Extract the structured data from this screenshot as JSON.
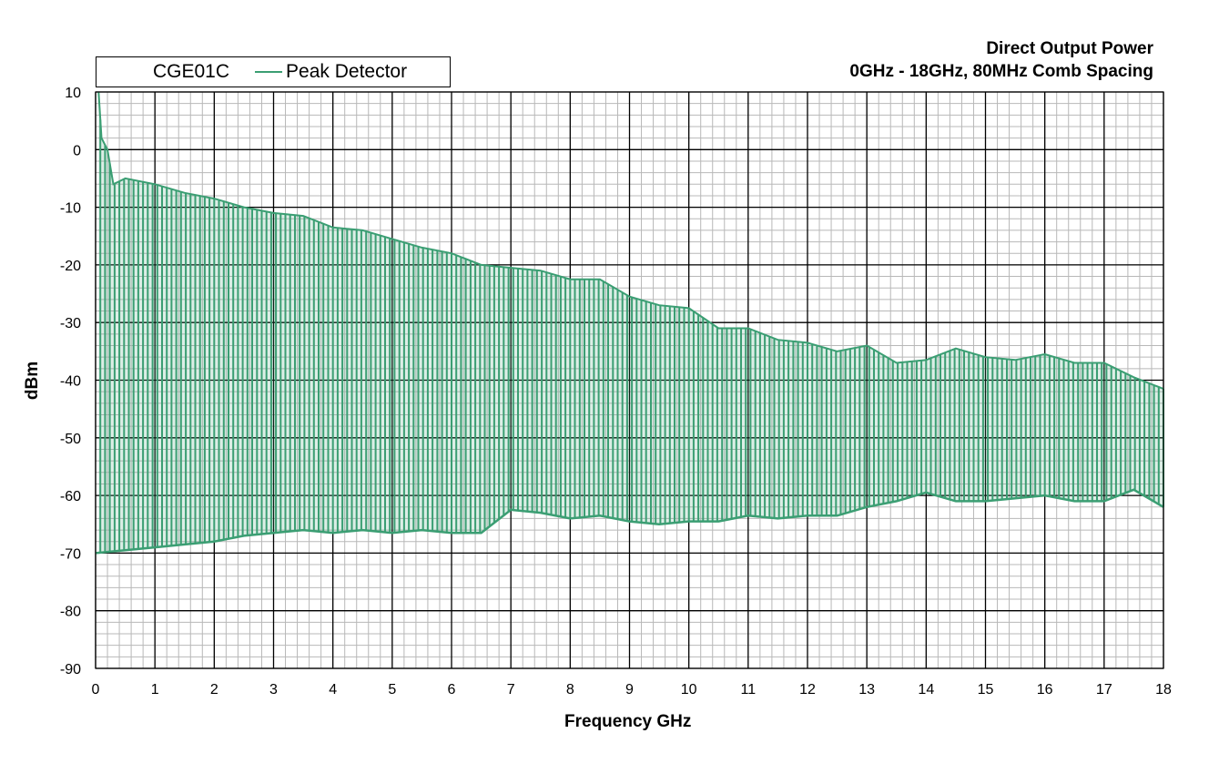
{
  "chart_data": {
    "type": "line",
    "title_lines": [
      "Direct Output Power",
      "0GHz - 18GHz, 80MHz Comb Spacing"
    ],
    "xlabel": "Frequency GHz",
    "ylabel": "dBm",
    "xlim": [
      0,
      18
    ],
    "ylim": [
      -90,
      10
    ],
    "x_ticks": [
      "0",
      "1",
      "2",
      "3",
      "4",
      "5",
      "6",
      "7",
      "8",
      "9",
      "10",
      "11",
      "12",
      "13",
      "14",
      "15",
      "16",
      "17",
      "18"
    ],
    "y_ticks": [
      "10",
      "0",
      "-10",
      "-20",
      "-30",
      "-40",
      "-50",
      "-60",
      "-70",
      "-80",
      "-90"
    ],
    "grid": "major and minor",
    "legend_position": "top-left",
    "legend_device": "CGE01C",
    "series": [
      {
        "name": "Peak Detector",
        "color": "#3b9e73",
        "comb_spacing_ghz": 0.08,
        "peak_envelope": {
          "x": [
            0.05,
            0.1,
            0.2,
            0.3,
            0.5,
            1.0,
            1.5,
            2.0,
            2.5,
            3.0,
            3.5,
            4.0,
            4.5,
            5.0,
            5.5,
            6.0,
            6.5,
            7.0,
            7.5,
            8.0,
            8.5,
            9.0,
            9.5,
            10.0,
            10.5,
            11.0,
            11.5,
            12.0,
            12.5,
            13.0,
            13.5,
            14.0,
            14.5,
            15.0,
            15.5,
            16.0,
            16.5,
            17.0,
            17.5,
            18.0
          ],
          "y": [
            10,
            2,
            0,
            -6,
            -5,
            -6,
            -7.5,
            -8.5,
            -10,
            -11,
            -11.5,
            -13.5,
            -14,
            -15.5,
            -17,
            -18,
            -20,
            -20.5,
            -21,
            -22.5,
            -22.5,
            -25.5,
            -27,
            -27.5,
            -31,
            -31,
            -33,
            -33.5,
            -35,
            -34,
            -37,
            -36.5,
            -34.5,
            -36,
            -36.5,
            -35.5,
            -37,
            -37,
            -39.5,
            -41.5
          ]
        },
        "noise_floor": {
          "x": [
            0,
            0.5,
            1.0,
            1.5,
            2.0,
            2.5,
            3.0,
            3.5,
            4.0,
            4.5,
            5.0,
            5.5,
            6.0,
            6.5,
            7.0,
            7.5,
            8.0,
            8.5,
            9.0,
            9.5,
            10.0,
            10.5,
            11.0,
            11.5,
            12.0,
            12.5,
            13.0,
            13.5,
            14.0,
            14.5,
            15.0,
            15.5,
            16.0,
            16.5,
            17.0,
            17.5,
            18.0
          ],
          "y": [
            -70,
            -69.5,
            -69,
            -68.5,
            -68,
            -67,
            -66.5,
            -66,
            -66.5,
            -66,
            -66.5,
            -66,
            -66.5,
            -66.5,
            -62.5,
            -63,
            -64,
            -63.5,
            -64.5,
            -65,
            -64.5,
            -64.5,
            -63.5,
            -64,
            -63.5,
            -63.5,
            -62,
            -61,
            -59.5,
            -61,
            -61,
            -60.5,
            -60,
            -61,
            -61,
            -59,
            -62
          ]
        }
      }
    ]
  }
}
